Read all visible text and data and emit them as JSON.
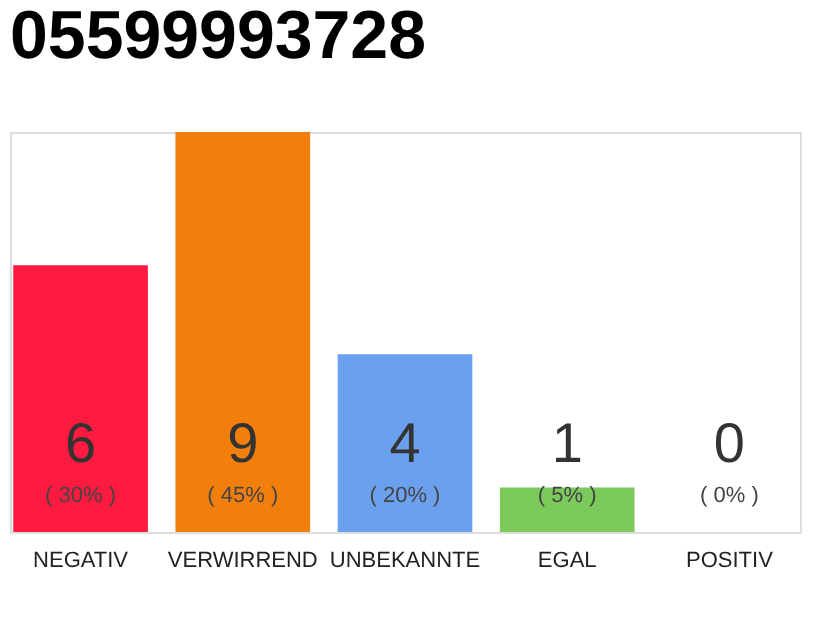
{
  "chart_data": {
    "type": "bar",
    "title": "05599993728",
    "categories": [
      "NEGATIV",
      "VERWIRREND",
      "UNBEKANNTE",
      "EGAL",
      "POSITIV"
    ],
    "values": [
      30,
      45,
      20,
      5,
      0
    ],
    "colors": [
      "#ff1a40",
      "#f27f0c",
      "#6aa0ee",
      "#7cc95c",
      "#cccccc"
    ],
    "value_labels": [
      "( 30% )",
      "( 45% )",
      "( 20% )",
      "( 5% )",
      "( 0% )"
    ],
    "annotations": [
      "6",
      "9",
      "4",
      "1",
      "0"
    ]
  }
}
